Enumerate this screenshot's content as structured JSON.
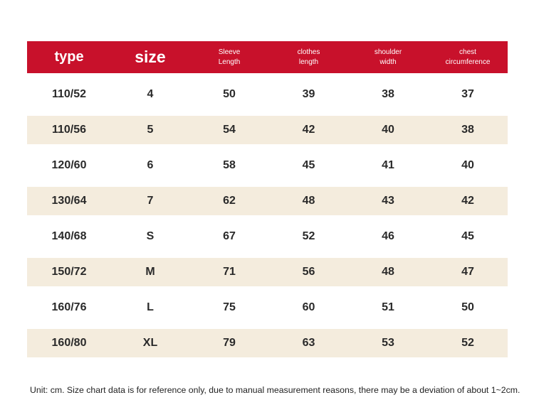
{
  "table": {
    "headers": [
      {
        "lines": [
          "type"
        ],
        "style": "big"
      },
      {
        "lines": [
          "size"
        ],
        "style": "big"
      },
      {
        "lines": [
          "Sleeve",
          "Length"
        ],
        "style": "small"
      },
      {
        "lines": [
          "clothes",
          "length"
        ],
        "style": "small"
      },
      {
        "lines": [
          "shoulder",
          "width"
        ],
        "style": "small"
      },
      {
        "lines": [
          "chest",
          "circumference"
        ],
        "style": "small"
      }
    ],
    "rows": [
      [
        "110/52",
        "4",
        "50",
        "39",
        "38",
        "37"
      ],
      [
        "110/56",
        "5",
        "54",
        "42",
        "40",
        "38"
      ],
      [
        "120/60",
        "6",
        "58",
        "45",
        "41",
        "40"
      ],
      [
        "130/64",
        "7",
        "62",
        "48",
        "43",
        "42"
      ],
      [
        "140/68",
        "S",
        "67",
        "52",
        "46",
        "45"
      ],
      [
        "150/72",
        "M",
        "71",
        "56",
        "48",
        "47"
      ],
      [
        "160/76",
        "L",
        "75",
        "60",
        "51",
        "50"
      ],
      [
        "160/80",
        "XL",
        "79",
        "63",
        "53",
        "52"
      ]
    ]
  },
  "footnote": "Unit: cm. Size chart data is for reference only, due to manual measurement reasons, there may be a deviation of about 1~2cm.",
  "colors": {
    "header_bg": "#c8112b",
    "stripe_bg": "#f4ecdd"
  }
}
